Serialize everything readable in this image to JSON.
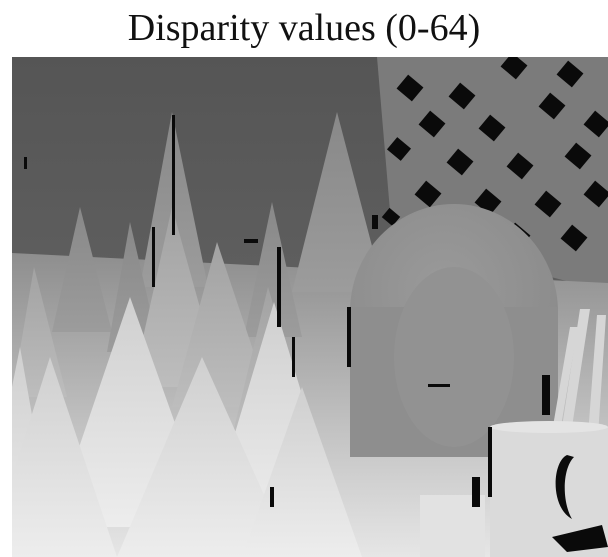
{
  "figure": {
    "title": "Disparity values (0-64)"
  },
  "image": {
    "kind": "grayscale disparity map",
    "scene": "stereo scene of cones, a lattice panel, a face mask, a mug and pencils"
  },
  "colors": {
    "background": "#ffffff",
    "title_text": "#111111",
    "far_gray": "#5a5a5a",
    "near_gray": "#f2f2f2"
  }
}
